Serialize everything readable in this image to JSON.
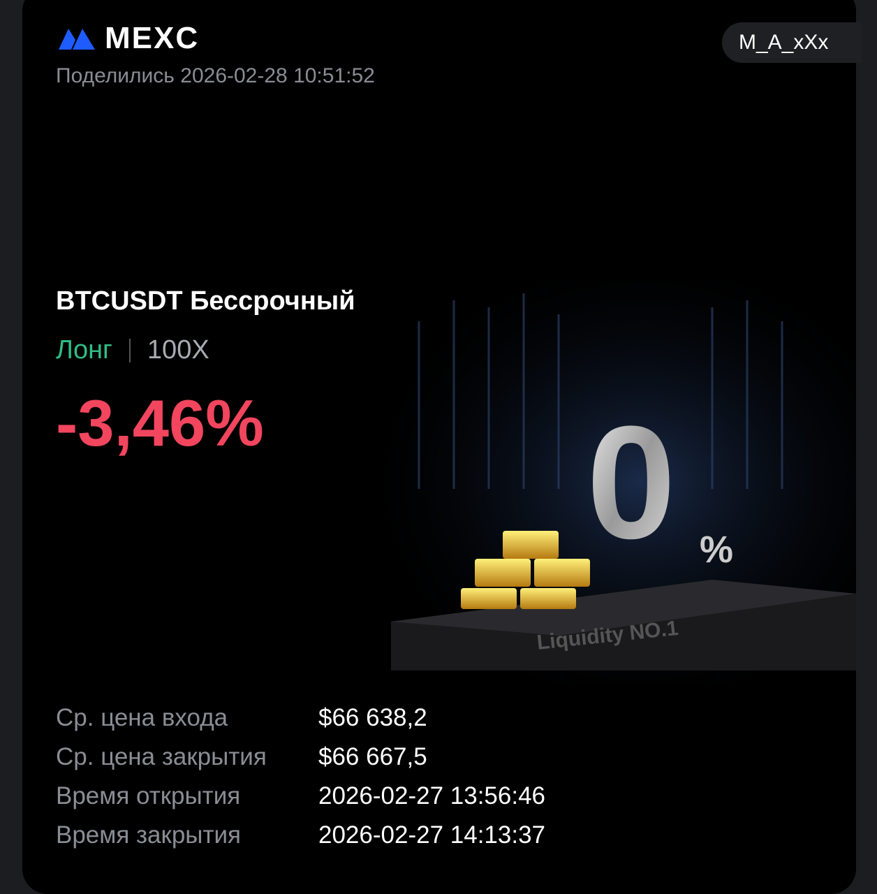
{
  "brand": {
    "name": "MEXC",
    "logo_color": "#1e5cff"
  },
  "header": {
    "shared_label": "Поделились 2026-02-28 10:51:52",
    "username": "M_A_xXx"
  },
  "position": {
    "pair": "BTCUSDT Бессрочный",
    "side": "Лонг",
    "leverage": "100X",
    "pnl": "-3,46%",
    "side_color": "#2fbd85",
    "pnl_color": "#f2455e"
  },
  "hero": {
    "text": "Liquidity NO.1",
    "big": "0",
    "pct": "%"
  },
  "details": [
    {
      "label": "Ср. цена входа",
      "value": "$66 638,2"
    },
    {
      "label": "Ср. цена закрытия",
      "value": "$66 667,5"
    },
    {
      "label": "Время открытия",
      "value": "2026-02-27 13:56:46"
    },
    {
      "label": "Время закрытия",
      "value": "2026-02-27 14:13:37"
    }
  ]
}
